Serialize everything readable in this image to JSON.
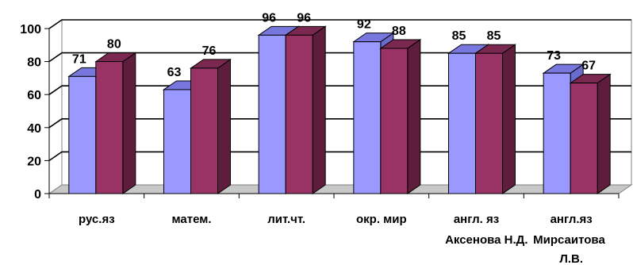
{
  "chart_data": {
    "type": "bar",
    "categories": [
      "рус.яз",
      "матем.",
      "лит.чт.",
      "окр. мир",
      "англ. яз\nАксенова Н.Д.",
      "англ.яз\nМирсаитова Л.В."
    ],
    "series": [
      {
        "values": [
          71,
          63,
          96,
          92,
          85,
          73
        ]
      },
      {
        "values": [
          80,
          76,
          96,
          88,
          85,
          67
        ]
      }
    ],
    "ylim": [
      0,
      100
    ],
    "yticks": [
      0,
      20,
      40,
      60,
      80,
      100
    ],
    "grid": true,
    "legend": "none",
    "colors": {
      "series1": "#9999ff",
      "series1_side": "#6b6bcc",
      "series1_top": "#7777dd",
      "series2": "#993366",
      "series2_side": "#5e1d3d",
      "series2_top": "#7a2850",
      "wall": "#ffffff",
      "floor": "#c8c8c8"
    }
  }
}
